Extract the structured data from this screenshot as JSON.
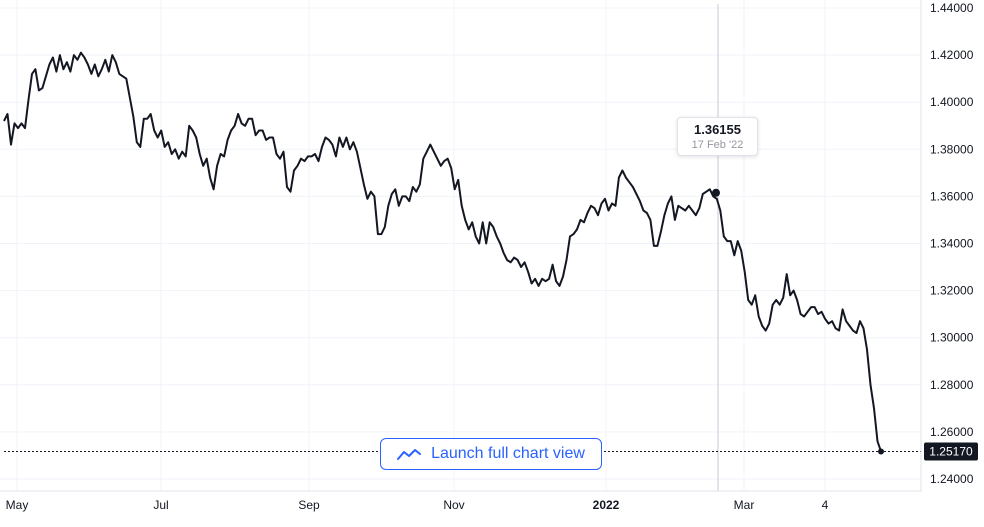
{
  "colors": {
    "line": "#131722",
    "grid": "#f0f3fa",
    "axis_text": "#131722",
    "crosshair": "#c5c9d3",
    "accent": "#2962ff",
    "badge_bg": "#131722",
    "badge_text": "#ffffff"
  },
  "tooltip": {
    "value": "1.36155",
    "date": "17 Feb '22"
  },
  "current_price_label": "1.25170",
  "launch_button": {
    "label": "Launch full chart view",
    "icon": "trend-line-icon"
  },
  "chart_data": {
    "type": "line",
    "x_ticks": [
      "May",
      "Jul",
      "Sep",
      "Nov",
      "2022",
      "Mar",
      "4"
    ],
    "y_ticks": [
      "1.24000",
      "1.26000",
      "1.28000",
      "1.30000",
      "1.32000",
      "1.34000",
      "1.36000",
      "1.38000",
      "1.40000",
      "1.42000",
      "1.44000"
    ],
    "ylim": [
      1.2373,
      1.4437
    ],
    "grid": true,
    "last_value": 1.2517,
    "highlight": {
      "date": "17 Feb '22",
      "value": 1.36155
    },
    "series": [
      {
        "values": [
          1.392,
          1.395,
          1.382,
          1.391,
          1.389,
          1.391,
          1.389,
          1.401,
          1.412,
          1.414,
          1.405,
          1.406,
          1.411,
          1.416,
          1.419,
          1.413,
          1.42,
          1.414,
          1.417,
          1.413,
          1.42,
          1.418,
          1.421,
          1.419,
          1.416,
          1.412,
          1.416,
          1.411,
          1.414,
          1.418,
          1.413,
          1.42,
          1.417,
          1.412,
          1.411,
          1.41,
          1.402,
          1.394,
          1.383,
          1.381,
          1.393,
          1.393,
          1.395,
          1.388,
          1.385,
          1.388,
          1.381,
          1.383,
          1.378,
          1.38,
          1.376,
          1.379,
          1.377,
          1.39,
          1.388,
          1.385,
          1.378,
          1.373,
          1.376,
          1.368,
          1.363,
          1.373,
          1.378,
          1.377,
          1.384,
          1.388,
          1.39,
          1.395,
          1.391,
          1.39,
          1.393,
          1.393,
          1.386,
          1.388,
          1.388,
          1.384,
          1.385,
          1.385,
          1.378,
          1.376,
          1.379,
          1.364,
          1.362,
          1.371,
          1.373,
          1.376,
          1.375,
          1.377,
          1.377,
          1.378,
          1.375,
          1.381,
          1.385,
          1.384,
          1.382,
          1.377,
          1.385,
          1.381,
          1.385,
          1.38,
          1.383,
          1.379,
          1.372,
          1.365,
          1.359,
          1.362,
          1.36,
          1.344,
          1.344,
          1.347,
          1.356,
          1.361,
          1.363,
          1.356,
          1.36,
          1.36,
          1.358,
          1.364,
          1.362,
          1.365,
          1.376,
          1.379,
          1.382,
          1.379,
          1.376,
          1.373,
          1.375,
          1.376,
          1.372,
          1.363,
          1.367,
          1.356,
          1.35,
          1.346,
          1.349,
          1.343,
          1.34,
          1.349,
          1.34,
          1.349,
          1.347,
          1.343,
          1.34,
          1.336,
          1.333,
          1.332,
          1.334,
          1.333,
          1.33,
          1.332,
          1.328,
          1.323,
          1.325,
          1.322,
          1.325,
          1.324,
          1.325,
          1.331,
          1.324,
          1.322,
          1.326,
          1.333,
          1.343,
          1.344,
          1.346,
          1.35,
          1.349,
          1.353,
          1.356,
          1.355,
          1.352,
          1.357,
          1.359,
          1.354,
          1.357,
          1.356,
          1.368,
          1.371,
          1.368,
          1.366,
          1.364,
          1.361,
          1.358,
          1.354,
          1.353,
          1.35,
          1.339,
          1.339,
          1.345,
          1.352,
          1.357,
          1.36,
          1.35,
          1.356,
          1.355,
          1.354,
          1.356,
          1.354,
          1.352,
          1.355,
          1.361,
          1.362,
          1.363,
          1.36,
          1.359,
          1.354,
          1.343,
          1.341,
          1.341,
          1.335,
          1.341,
          1.337,
          1.328,
          1.316,
          1.314,
          1.318,
          1.309,
          1.305,
          1.303,
          1.306,
          1.314,
          1.316,
          1.314,
          1.317,
          1.327,
          1.318,
          1.32,
          1.316,
          1.31,
          1.309,
          1.311,
          1.313,
          1.313,
          1.31,
          1.311,
          1.308,
          1.306,
          1.307,
          1.304,
          1.303,
          1.312,
          1.307,
          1.305,
          1.303,
          1.302,
          1.307,
          1.304,
          1.295,
          1.28,
          1.27,
          1.256,
          1.2517
        ]
      }
    ]
  }
}
